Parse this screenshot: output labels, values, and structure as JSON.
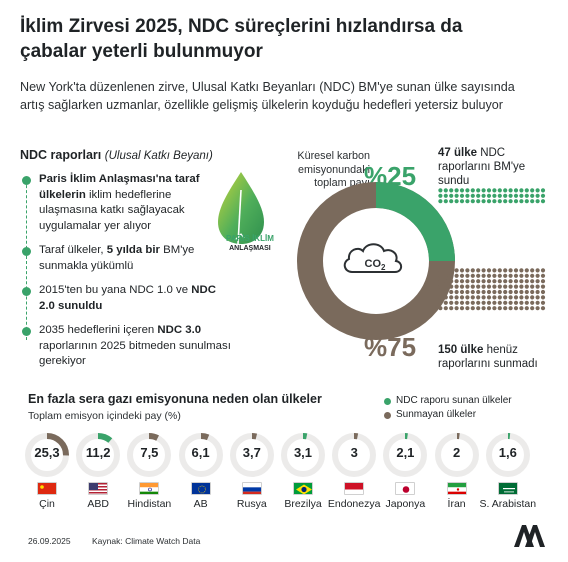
{
  "header": {
    "title": "İklim Zirvesi 2025, NDC süreçlerini hızlandırsa da çabalar yeterli bulunmuyor",
    "subtitle": "New York'ta düzenlenen zirve, Ulusal Katkı Beyanları (NDC) BM'ye sunan ülke sayısında artış sağlarken uzmanlar, özellikle gelişmiş ülkelerin koyduğu hedefleri yetersiz buluyor"
  },
  "ndc": {
    "heading": "NDC raporları",
    "heading_note": "(Ulusal Katkı Beyanı)",
    "steps": [
      {
        "bold": "Paris İklim Anlaşması'na taraf ülkelerin",
        "text": " iklim hedeflerine ulaşmasına katkı sağlayacak uygulamalar yer alıyor"
      },
      {
        "pre": "Taraf ülkeler, ",
        "bold": "5 yılda bir",
        "text": " BM'ye sunmakla yükümlü"
      },
      {
        "pre": "2015'ten bu yana NDC 1.0 ve ",
        "bold": "NDC 2.0 sunuldu",
        "text": ""
      },
      {
        "pre": "2035 hedeflerini içeren ",
        "bold": "NDC 3.0",
        "text": " raporlarının 2025 bitmeden sunulması gerekiyor"
      }
    ],
    "leaf_label_top": "PARİS İKLİM",
    "leaf_label_bottom": "ANLAŞMASI"
  },
  "global_share": {
    "label": "Küresel karbon emisyonundaki toplam payı",
    "pct_submitted": "%25",
    "pct_not_submitted": "%75",
    "submitted_value": 25,
    "not_submitted_value": 75,
    "co2_text": "CO2",
    "submitted_count_bold": "47 ülke",
    "submitted_count_text": " NDC raporlarını BM'ye sundu",
    "not_submitted_count_bold": "150 ülke",
    "not_submitted_count_text": " henüz raporlarını sunmadı",
    "submitted_dots": 47,
    "not_submitted_dots": 150
  },
  "chart_data": {
    "type": "pie",
    "title": "En fazla sera gazı emisyonuna neden olan ülkeler",
    "subtitle": "Toplam emisyon içindeki pay (%)",
    "legend": [
      {
        "label": "NDC raporu sunan ülkeler",
        "color": "#3aa36a"
      },
      {
        "label": "Sunmayan ülkeler",
        "color": "#7a6a5c"
      }
    ],
    "categories": [
      "Çin",
      "ABD",
      "Hindistan",
      "AB",
      "Rusya",
      "Brezilya",
      "Endonezya",
      "Japonya",
      "İran",
      "S. Arabistan"
    ],
    "values": [
      25.3,
      11.2,
      7.5,
      6.1,
      3.7,
      3.1,
      3,
      2.1,
      2,
      1.6
    ],
    "value_labels": [
      "25,3",
      "11,2",
      "7,5",
      "6,1",
      "3,7",
      "3,1",
      "3",
      "2,1",
      "2",
      "1,6"
    ],
    "submitted": [
      false,
      true,
      false,
      false,
      false,
      true,
      false,
      true,
      false,
      true
    ]
  },
  "footer": {
    "date": "26.09.2025",
    "source": "Kaynak: Climate Watch Data"
  },
  "colors": {
    "green": "#3aa36a",
    "brown": "#7a6a5c",
    "green_light": "#cfe7d8",
    "brown_light": "#e6e1dc",
    "ring_bg": "#ecebea"
  }
}
